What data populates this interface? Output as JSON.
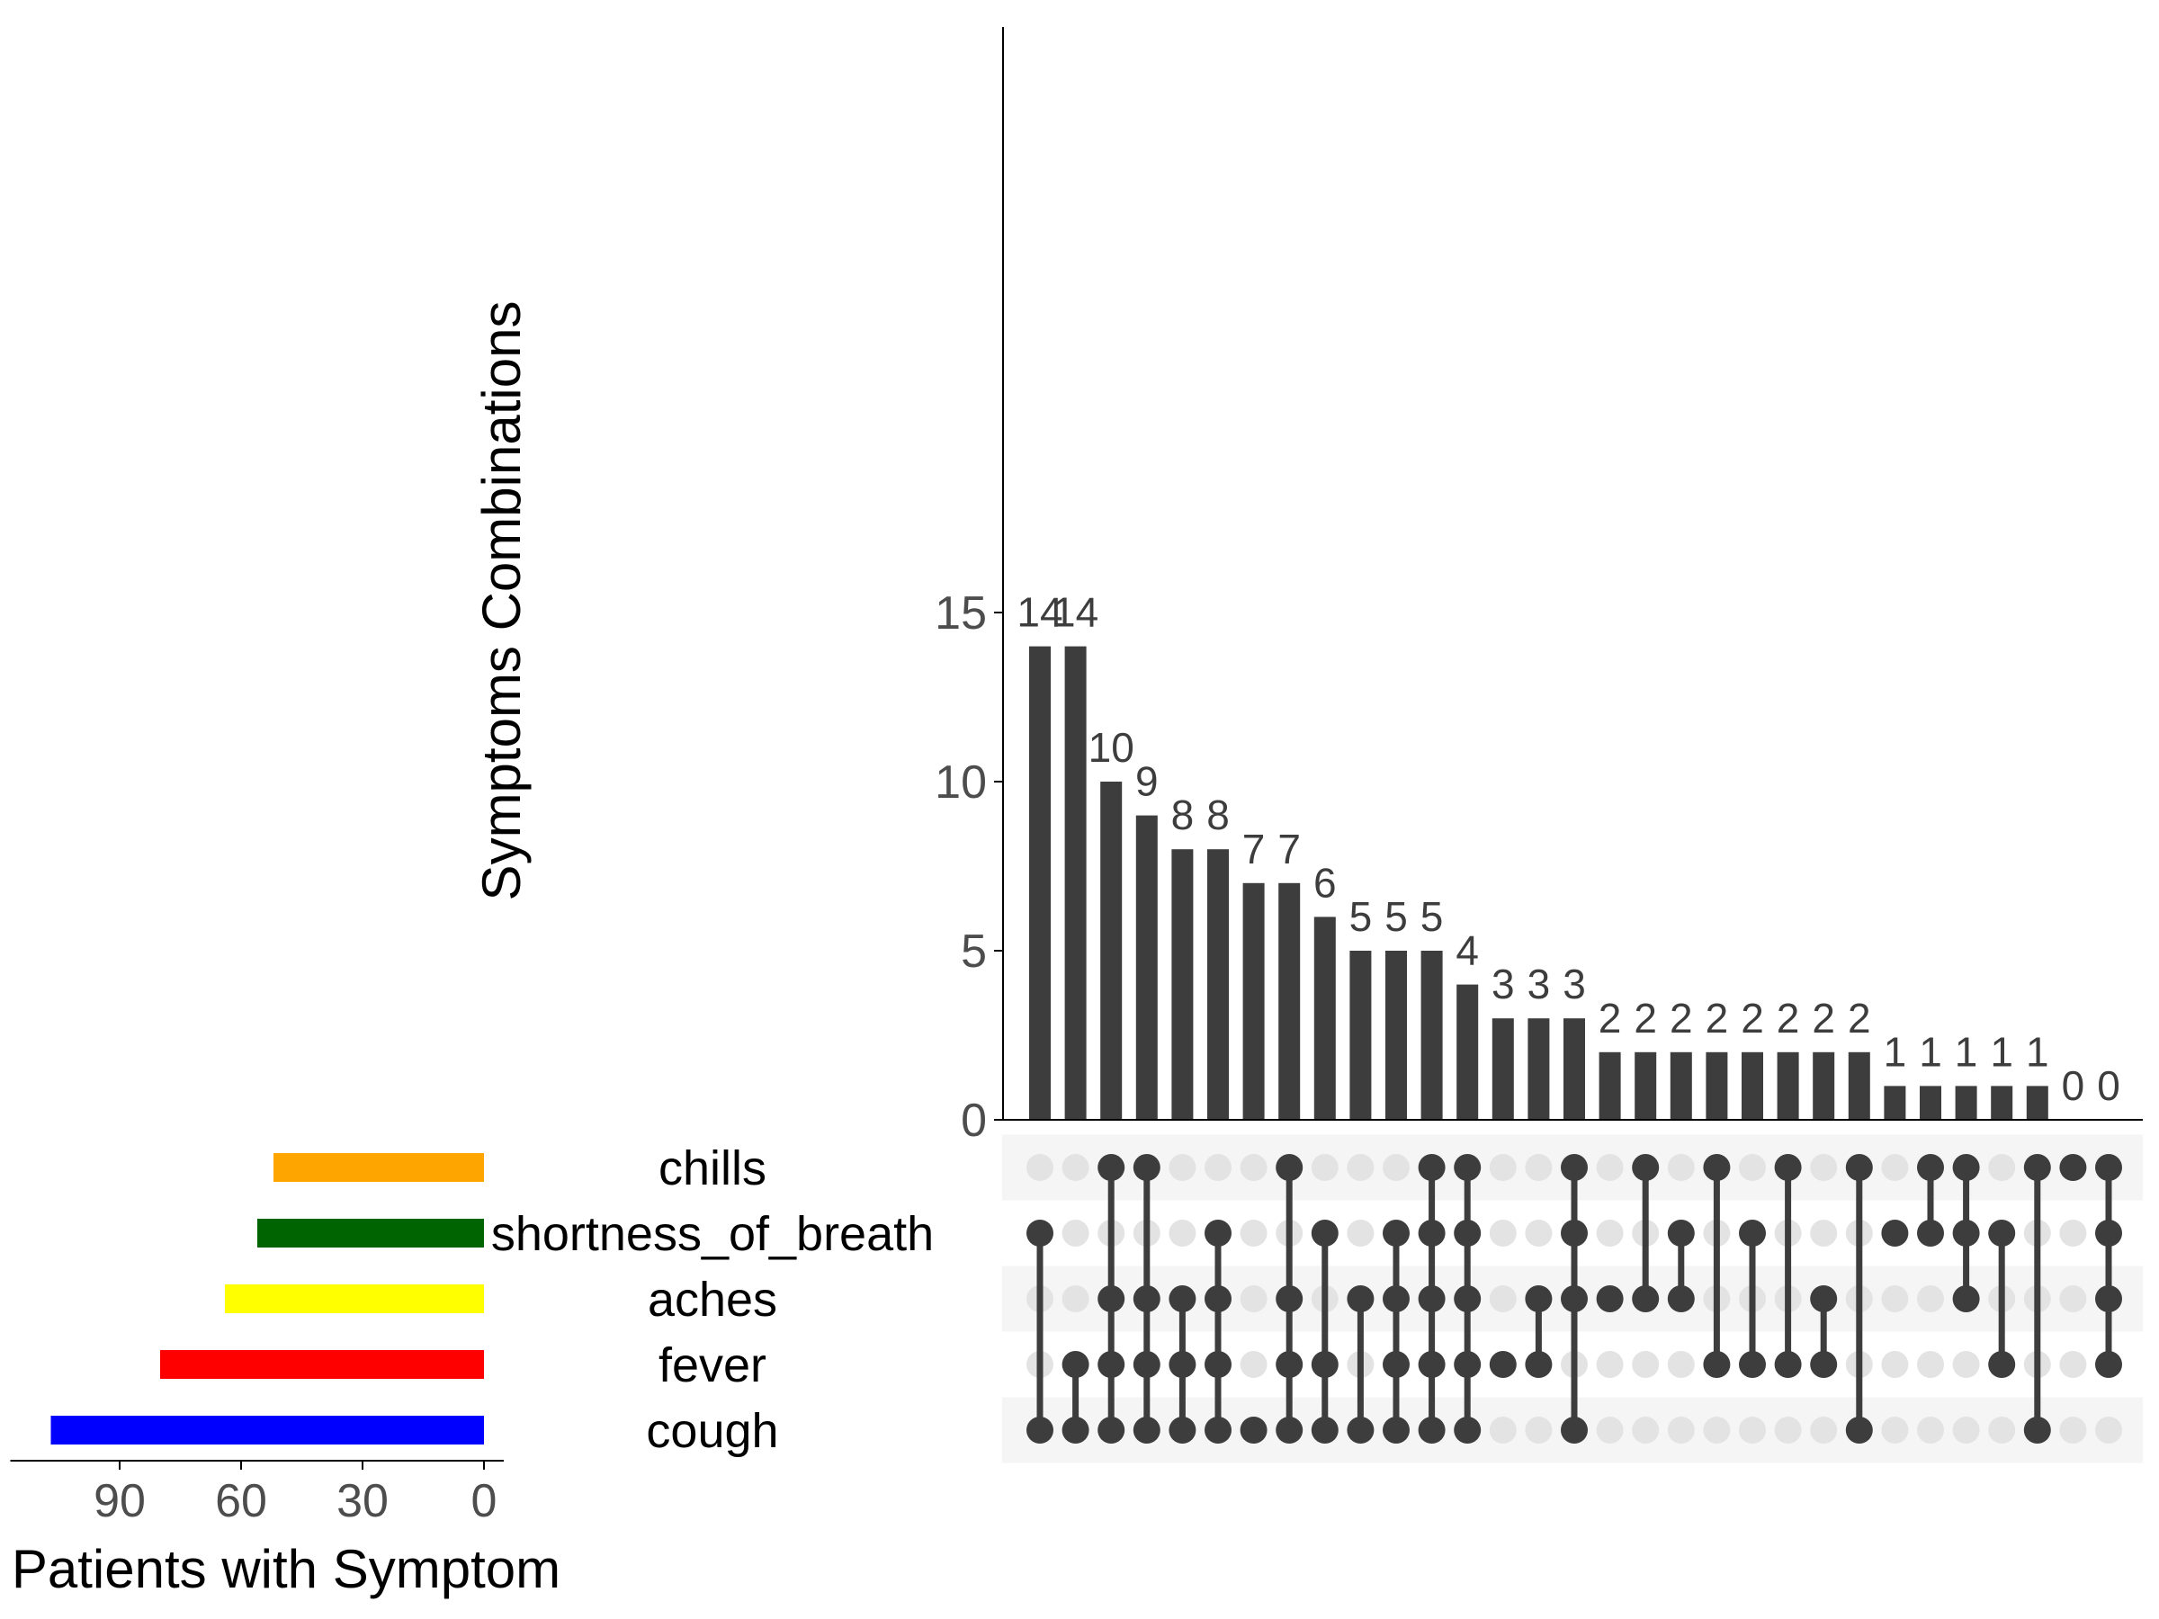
{
  "chart_data": {
    "type": "upset",
    "sets": [
      "chills",
      "shortness_of_breath",
      "aches",
      "fever",
      "cough"
    ],
    "set_colors": [
      "#FFA500",
      "#006400",
      "#FFFF00",
      "#FF0000",
      "#0000FF"
    ],
    "set_sizes": [
      52,
      56,
      64,
      80,
      107
    ],
    "set_axis": {
      "label": "Patients with Symptom",
      "ticks": [
        90,
        60,
        30,
        0
      ],
      "xlim": [
        0,
        117
      ],
      "reversed": true
    },
    "intersection_axis": {
      "label": "Symptoms Combinations",
      "ticks": [
        0,
        5,
        10,
        15
      ],
      "ylim": [
        0,
        16.1
      ]
    },
    "intersections": [
      {
        "value": 14,
        "sets": [
          "shortness_of_breath",
          "cough"
        ]
      },
      {
        "value": 14,
        "sets": [
          "fever",
          "cough"
        ]
      },
      {
        "value": 10,
        "sets": [
          "chills",
          "aches",
          "fever",
          "cough"
        ]
      },
      {
        "value": 9,
        "sets": [
          "chills",
          "aches",
          "fever",
          "cough"
        ]
      },
      {
        "value": 8,
        "sets": [
          "aches",
          "fever",
          "cough"
        ]
      },
      {
        "value": 8,
        "sets": [
          "shortness_of_breath",
          "aches",
          "fever",
          "cough"
        ]
      },
      {
        "value": 7,
        "sets": [
          "cough"
        ]
      },
      {
        "value": 7,
        "sets": [
          "chills",
          "aches",
          "fever",
          "cough"
        ]
      },
      {
        "value": 6,
        "sets": [
          "shortness_of_breath",
          "fever",
          "cough"
        ]
      },
      {
        "value": 5,
        "sets": [
          "aches",
          "cough"
        ]
      },
      {
        "value": 5,
        "sets": [
          "shortness_of_breath",
          "aches",
          "fever",
          "cough"
        ]
      },
      {
        "value": 5,
        "sets": [
          "chills",
          "shortness_of_breath",
          "aches",
          "fever",
          "cough"
        ]
      },
      {
        "value": 4,
        "sets": [
          "chills",
          "shortness_of_breath",
          "aches",
          "fever",
          "cough"
        ]
      },
      {
        "value": 3,
        "sets": [
          "fever"
        ]
      },
      {
        "value": 3,
        "sets": [
          "aches",
          "fever"
        ]
      },
      {
        "value": 3,
        "sets": [
          "chills",
          "shortness_of_breath",
          "aches",
          "cough"
        ]
      },
      {
        "value": 2,
        "sets": [
          "aches"
        ]
      },
      {
        "value": 2,
        "sets": [
          "chills",
          "aches"
        ]
      },
      {
        "value": 2,
        "sets": [
          "shortness_of_breath",
          "aches"
        ]
      },
      {
        "value": 2,
        "sets": [
          "chills",
          "fever"
        ]
      },
      {
        "value": 2,
        "sets": [
          "shortness_of_breath",
          "fever"
        ]
      },
      {
        "value": 2,
        "sets": [
          "chills",
          "fever"
        ]
      },
      {
        "value": 2,
        "sets": [
          "aches",
          "fever"
        ]
      },
      {
        "value": 2,
        "sets": [
          "chills",
          "cough"
        ]
      },
      {
        "value": 1,
        "sets": [
          "shortness_of_breath"
        ]
      },
      {
        "value": 1,
        "sets": [
          "chills",
          "shortness_of_breath"
        ]
      },
      {
        "value": 1,
        "sets": [
          "chills",
          "shortness_of_breath",
          "aches"
        ]
      },
      {
        "value": 1,
        "sets": [
          "shortness_of_breath",
          "fever"
        ]
      },
      {
        "value": 1,
        "sets": [
          "chills",
          "cough"
        ]
      },
      {
        "value": 0,
        "sets": [
          "chills"
        ]
      },
      {
        "value": 0,
        "sets": [
          "chills",
          "shortness_of_breath",
          "aches",
          "fever"
        ]
      }
    ],
    "colors": {
      "bar": "#3D3D3D",
      "dot_inactive": "#E3E3E3",
      "stripe": "#F5F5F5",
      "axis": "#000000",
      "tick_label": "#4D4D4D"
    }
  }
}
